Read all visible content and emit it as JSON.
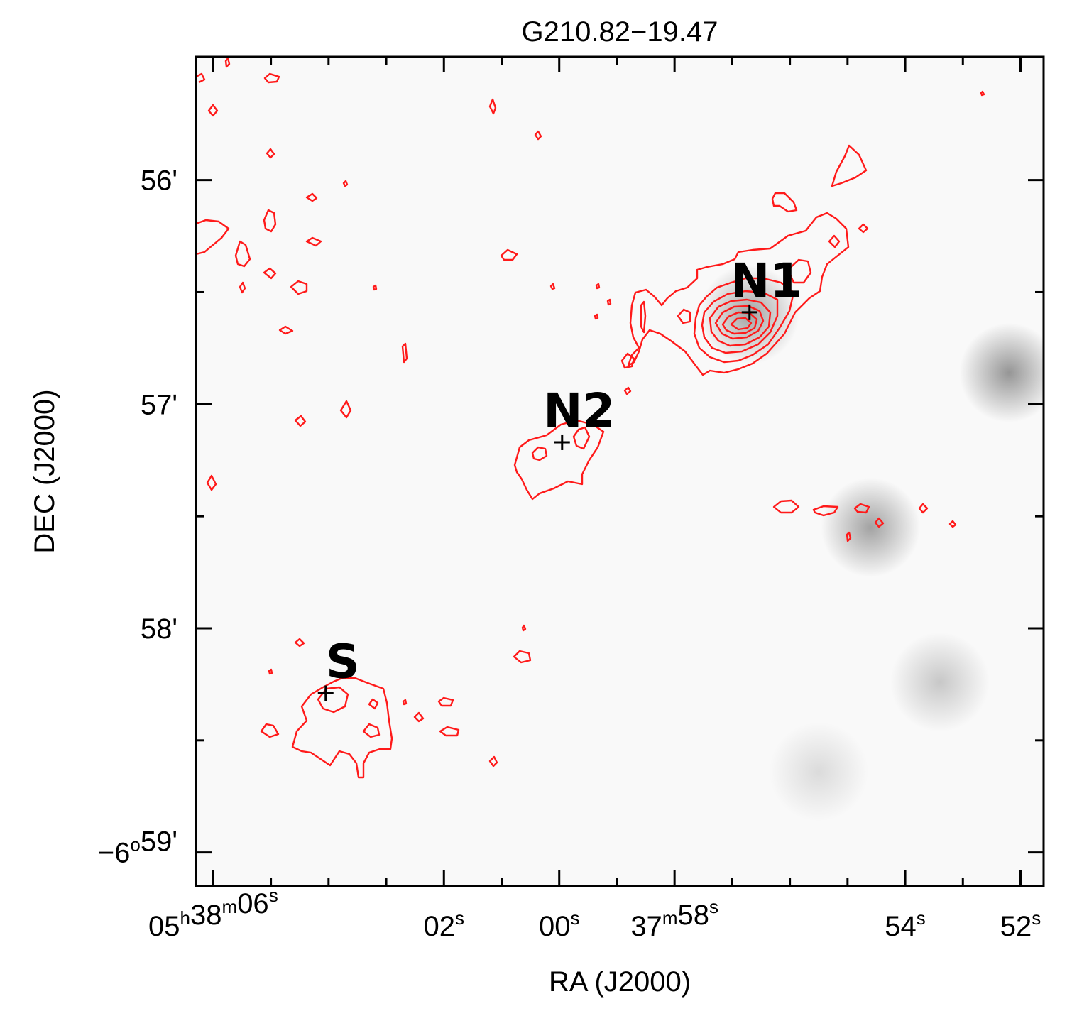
{
  "chart_data": {
    "type": "contour",
    "title": "G210.82−19.47",
    "xlabel": "RA (J2000)",
    "ylabel": "DEC (J2000)",
    "x_ticks": [
      {
        "value_s": 66,
        "parts": [
          {
            "t": "05"
          },
          {
            "t": "h",
            "sup": true
          },
          {
            "t": "38"
          },
          {
            "t": "m",
            "sup": true
          },
          {
            "t": "06"
          },
          {
            "t": "s",
            "sup": true
          }
        ]
      },
      {
        "value_s": 62,
        "parts": [
          {
            "t": "02"
          },
          {
            "t": "s",
            "sup": true
          }
        ]
      },
      {
        "value_s": 60,
        "parts": [
          {
            "t": "00"
          },
          {
            "t": "s",
            "sup": true
          }
        ]
      },
      {
        "value_s": 58,
        "parts": [
          {
            "t": "37"
          },
          {
            "t": "m",
            "sup": true
          },
          {
            "t": "58"
          },
          {
            "t": "s",
            "sup": true
          }
        ]
      },
      {
        "value_s": 54,
        "parts": [
          {
            "t": "54"
          },
          {
            "t": "s",
            "sup": true
          }
        ]
      },
      {
        "value_s": 52,
        "parts": [
          {
            "t": "52"
          },
          {
            "t": "s",
            "sup": true
          }
        ]
      }
    ],
    "x_minor_ticks_s": [
      65,
      64,
      63,
      61,
      59,
      57,
      56,
      55,
      53
    ],
    "y_ticks": [
      {
        "value_arcmin": 56,
        "parts": [
          {
            "t": "56'"
          }
        ]
      },
      {
        "value_arcmin": 57,
        "parts": [
          {
            "t": "57'"
          }
        ]
      },
      {
        "value_arcmin": 58,
        "parts": [
          {
            "t": "58'"
          }
        ]
      },
      {
        "value_arcmin": 59,
        "parts": [
          {
            "t": "−6"
          },
          {
            "t": "o",
            "sup": true
          },
          {
            "t": "59'"
          }
        ]
      }
    ],
    "y_minor_ticks_arcmin": [
      56.5,
      57.5,
      58.5
    ],
    "xlim_s": [
      66.3,
      51.6
    ],
    "ylim_arcmin": [
      55.45,
      59.15
    ],
    "contour_color": "#ff1a1a",
    "sources": [
      {
        "name": "N1",
        "ra_s": 56.7,
        "dec_arcmin": 56.59
      },
      {
        "name": "N2",
        "ra_s": 59.95,
        "dec_arcmin": 57.17
      },
      {
        "name": "S",
        "ra_s": 64.05,
        "dec_arcmin": 58.29
      }
    ],
    "background_blobs": [
      {
        "ra_s": 56.7,
        "dec_arcmin": 56.6,
        "strength": 0.35
      },
      {
        "ra_s": 52.2,
        "dec_arcmin": 56.86,
        "strength": 0.4
      },
      {
        "ra_s": 54.6,
        "dec_arcmin": 57.55,
        "strength": 0.35
      },
      {
        "ra_s": 53.4,
        "dec_arcmin": 58.24,
        "strength": 0.2
      },
      {
        "ra_s": 55.5,
        "dec_arcmin": 58.64,
        "strength": 0.12
      }
    ]
  }
}
